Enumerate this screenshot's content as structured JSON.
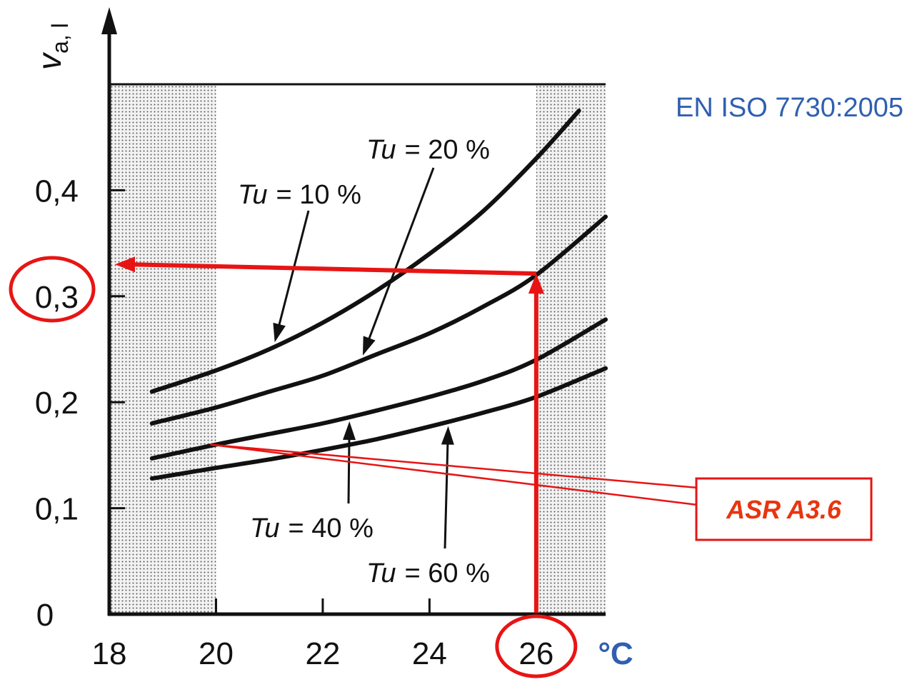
{
  "chart_data": {
    "type": "line",
    "title": "",
    "standard_reference": "EN ISO 7730:2005",
    "xlabel": "°C",
    "ylabel": "v",
    "ylabel_subscript": "a, l",
    "x_ticks": [
      "18",
      "20",
      "22",
      "24",
      "26"
    ],
    "y_ticks": [
      "0",
      "0,1",
      "0,2",
      "0,3",
      "0,4"
    ],
    "xlim": [
      18,
      27.3
    ],
    "ylim": [
      0,
      0.5
    ],
    "grid": false,
    "shaded_ranges": [
      [
        18,
        20
      ],
      [
        26,
        27.3
      ]
    ],
    "series": [
      {
        "name": "Tu = 10 %",
        "label_prefix": "Tu",
        "label_value": "= 10 %",
        "x": [
          18.8,
          20,
          21,
          22,
          23,
          24,
          25,
          26,
          26.8
        ],
        "y": [
          0.21,
          0.23,
          0.25,
          0.275,
          0.305,
          0.34,
          0.38,
          0.43,
          0.475
        ]
      },
      {
        "name": "Tu = 20 %",
        "label_prefix": "Tu",
        "label_value": "= 20 %",
        "x": [
          18.8,
          20,
          21,
          22,
          23,
          24,
          25,
          26,
          27.3
        ],
        "y": [
          0.18,
          0.195,
          0.21,
          0.225,
          0.245,
          0.265,
          0.29,
          0.32,
          0.375
        ]
      },
      {
        "name": "Tu = 40 %",
        "label_prefix": "Tu",
        "label_value": "= 40 %",
        "x": [
          18.8,
          20,
          21,
          22,
          23,
          24,
          25,
          26,
          27.3
        ],
        "y": [
          0.147,
          0.16,
          0.17,
          0.18,
          0.192,
          0.205,
          0.22,
          0.24,
          0.278
        ]
      },
      {
        "name": "Tu = 60 %",
        "label_prefix": "Tu",
        "label_value": "= 60 %",
        "x": [
          18.8,
          20,
          21,
          22,
          23,
          24,
          25,
          26,
          27.3
        ],
        "y": [
          0.128,
          0.138,
          0.146,
          0.155,
          0.165,
          0.177,
          0.19,
          0.205,
          0.232
        ]
      }
    ],
    "annotations": {
      "reading_path": {
        "from_x": 26,
        "to_y": 0.32,
        "target_x": 18
      },
      "highlighted_y_tick": "0,3",
      "highlighted_x_tick": "26",
      "asr_box_text": "ASR A3.6",
      "asr_pointer_x": 20,
      "asr_pointer_y": 0.16
    },
    "colors": {
      "axis": "#111111",
      "curve": "#111111",
      "annotation": "#e81414",
      "asr_text": "#e8350f",
      "blue_text": "#2f5fb0",
      "shade": "#c8c8c8"
    }
  }
}
